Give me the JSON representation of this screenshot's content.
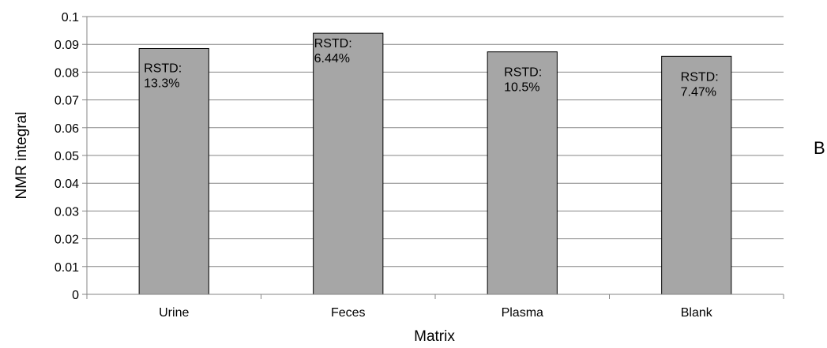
{
  "panel_letter": "B",
  "chart_data": {
    "type": "bar",
    "categories": [
      "Urine",
      "Feces",
      "Plasma",
      "Blank"
    ],
    "values": [
      0.0885,
      0.094,
      0.0873,
      0.0857
    ],
    "data_labels": [
      [
        "RSTD:",
        "13.3%"
      ],
      [
        "RSTD:",
        "6.44%"
      ],
      [
        "RSTD:",
        "10.5%"
      ],
      [
        "RSTD:",
        "7.47%"
      ]
    ],
    "y_ticks": [
      "0",
      "0.01",
      "0.02",
      "0.03",
      "0.04",
      "0.05",
      "0.06",
      "0.07",
      "0.08",
      "0.09",
      "0.1"
    ],
    "xlabel": "Matrix",
    "ylabel": "NMR integral",
    "ylim": [
      0,
      0.1
    ],
    "grid": true,
    "bar_color": "#a6a6a6",
    "grid_color": "#868686"
  }
}
